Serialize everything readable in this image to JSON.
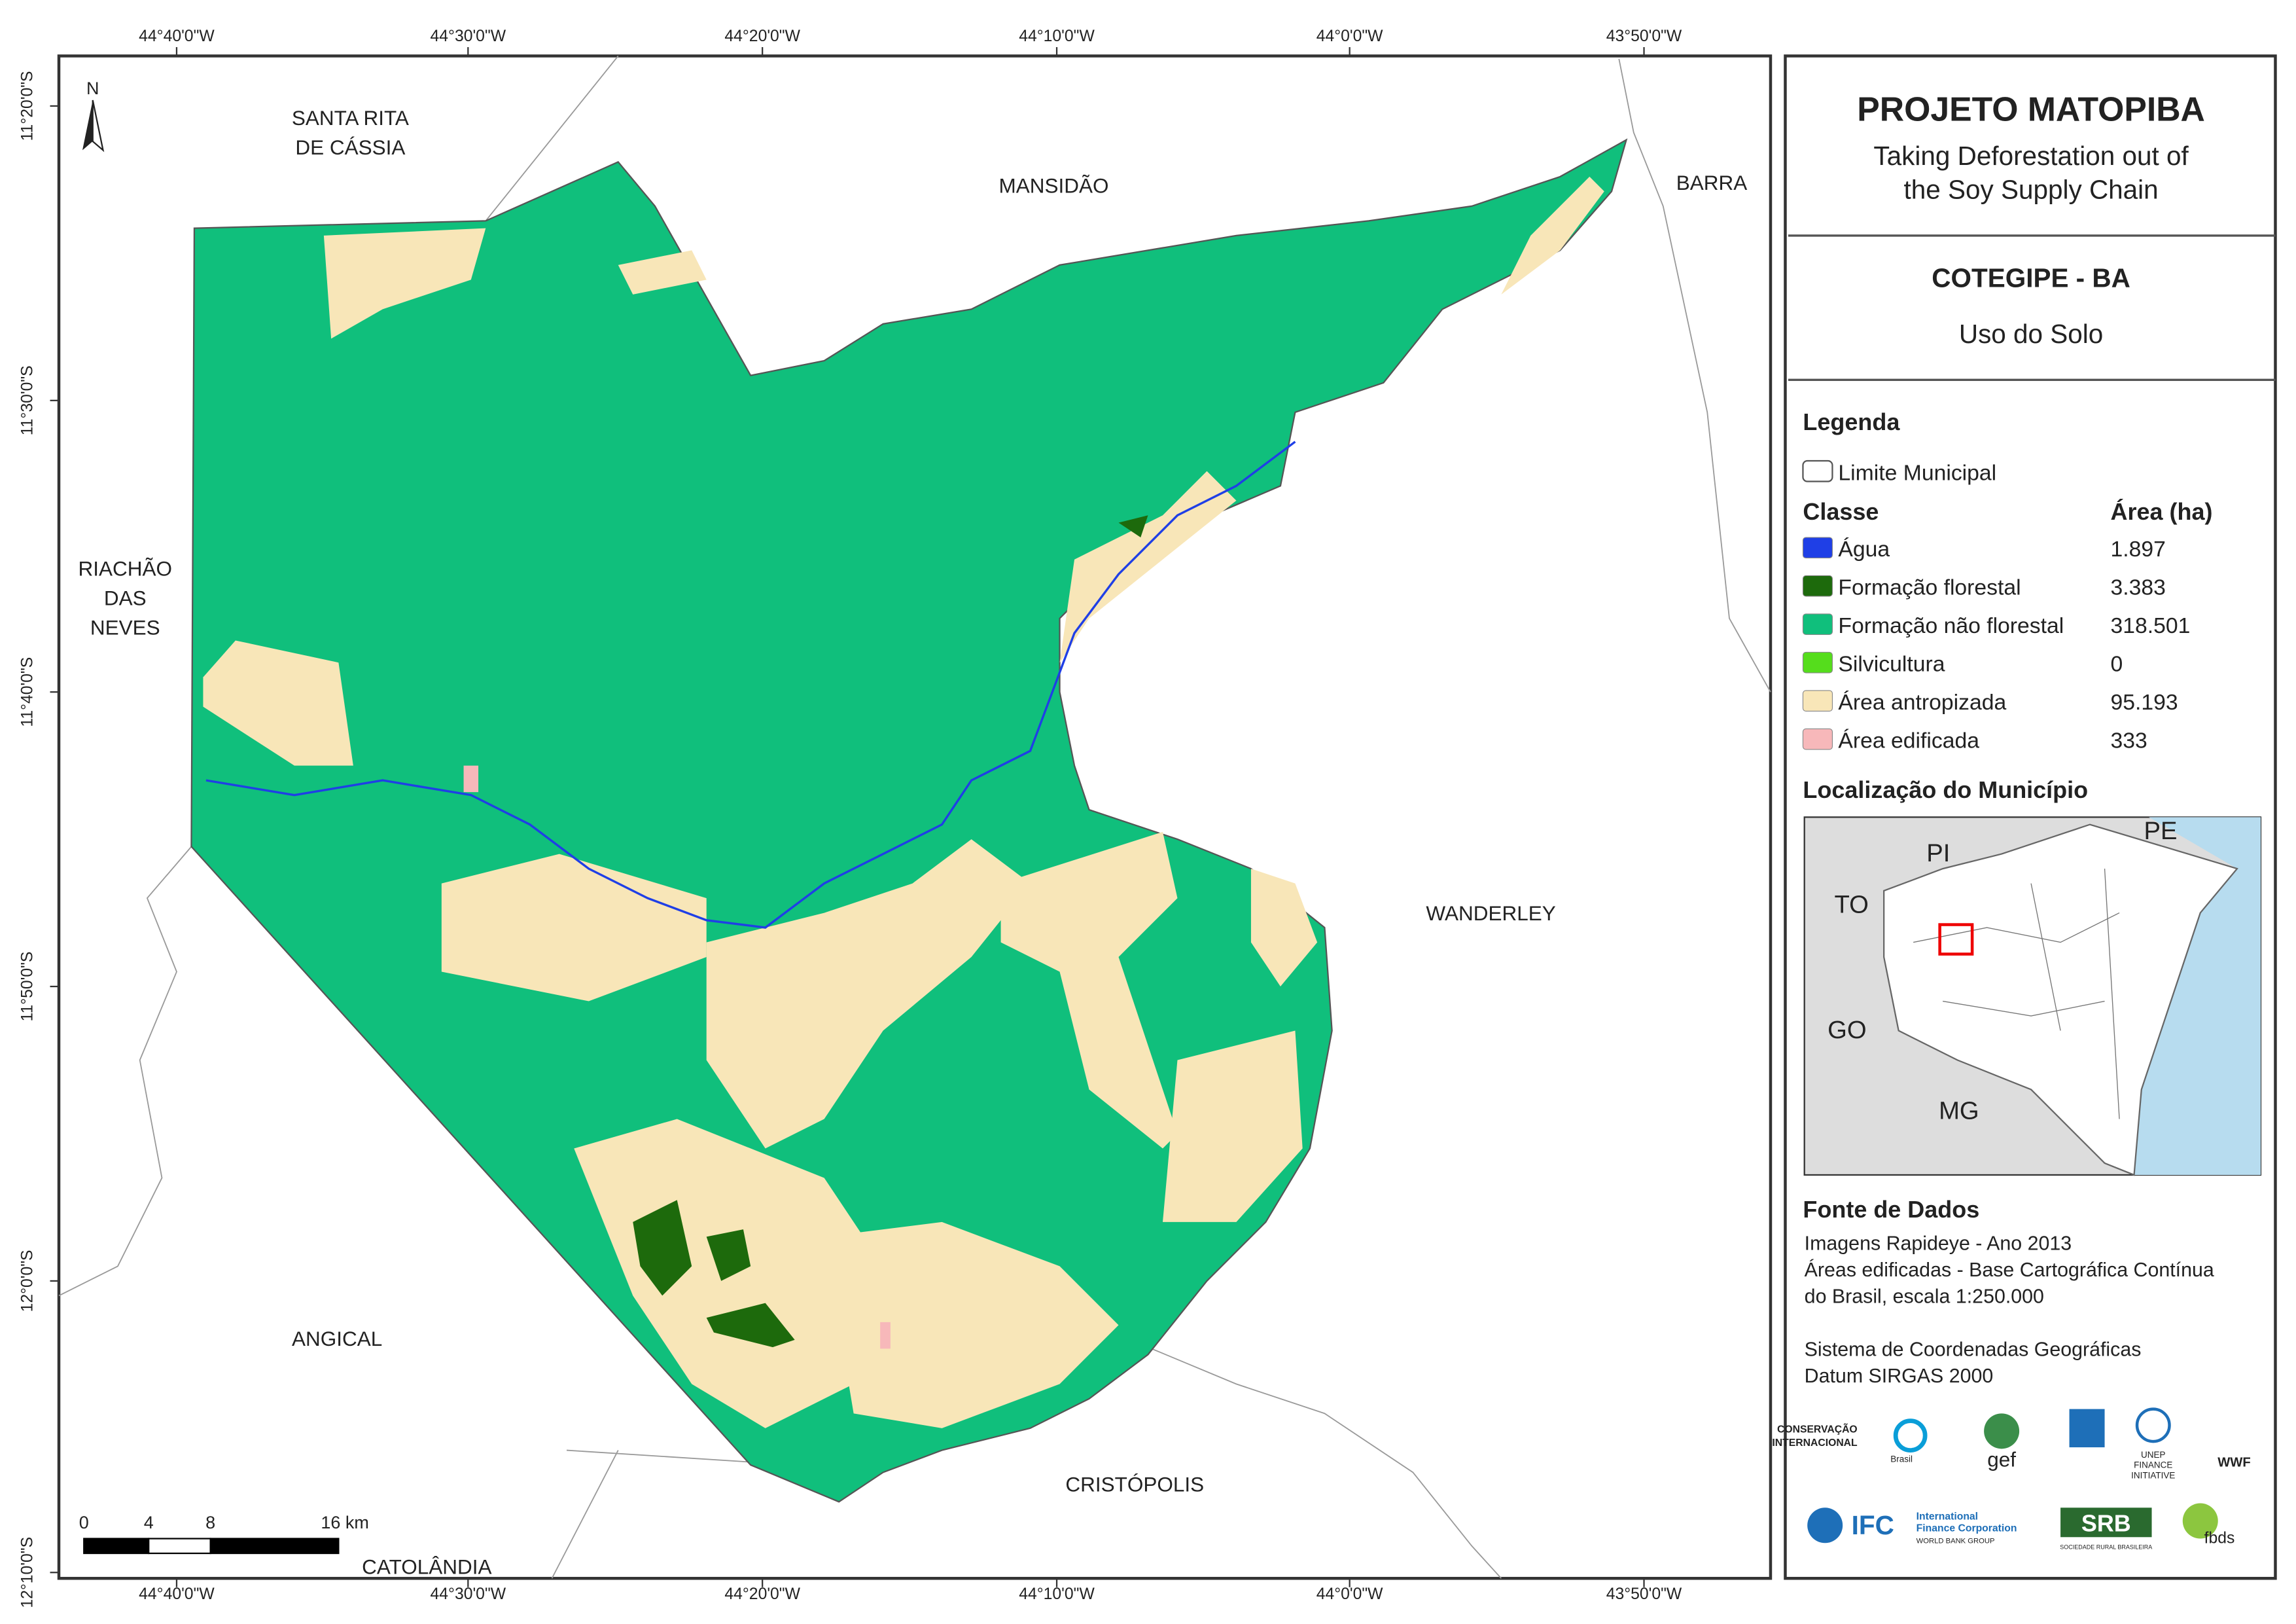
{
  "header": {
    "title": "PROJETO MATOPIBA",
    "subtitle": [
      "Taking Deforestation out of",
      "the Soy Supply Chain"
    ]
  },
  "municipality": {
    "name": "COTEGIPE - BA",
    "theme": "Uso do Solo"
  },
  "legend": {
    "title": "Legenda",
    "boundary": "Limite Municipal",
    "class_header": "Classe",
    "area_header": "Área (ha)",
    "items": [
      {
        "label": "Água",
        "area": "1.897",
        "color": "#1f3fe6"
      },
      {
        "label": "Formação florestal",
        "area": "3.383",
        "color": "#1d6a0c"
      },
      {
        "label": "Formação não florestal",
        "area": "318.501",
        "color": "#10bf7c"
      },
      {
        "label": "Silvicultura",
        "area": "0",
        "color": "#55dd1c"
      },
      {
        "label": "Área antropizada",
        "area": "95.193",
        "color": "#f8e6b8"
      },
      {
        "label": "Área edificada",
        "area": "333",
        "color": "#f7b8ba"
      }
    ]
  },
  "location": {
    "title": "Localização do Município",
    "states": [
      "PI",
      "PE",
      "TO",
      "GO",
      "MG"
    ]
  },
  "source": {
    "title": "Fonte de Dados",
    "lines": [
      "Imagens Rapideye - Ano 2013",
      "Áreas edificadas - Base Cartográfica Contínua",
      "do Brasil, escala 1:250.000",
      "",
      "Sistema de Coordenadas Geográficas",
      "Datum SIRGAS 2000"
    ]
  },
  "map": {
    "north": "N",
    "lon_labels": [
      "44°40'0\"W",
      "44°30'0\"W",
      "44°20'0\"W",
      "44°10'0\"W",
      "44°0'0\"W",
      "43°50'0\"W"
    ],
    "lat_labels": [
      "11°20'0\"S",
      "11°30'0\"S",
      "11°40'0\"S",
      "11°50'0\"S",
      "12°0'0\"S",
      "12°10'0\"S"
    ],
    "places": [
      [
        "SANTA RITA",
        "DE CÁSSIA"
      ],
      [
        "MANSIDÃO"
      ],
      [
        "BARRA"
      ],
      [
        "RIACHÃO",
        "DAS",
        "NEVES"
      ],
      [
        "WANDERLEY"
      ],
      [
        "ANGICAL"
      ],
      [
        "CRISTÓPOLIS"
      ],
      [
        "CATOLÂNDIA"
      ]
    ],
    "scale": [
      "0",
      "4",
      "8",
      "16 km"
    ]
  },
  "logos": [
    "CONSERVAÇÃO",
    "INTERNACIONAL",
    "Brasil",
    "gef",
    "UNEP",
    "FINANCE",
    "INITIATIVE",
    "WWF",
    "IFC",
    "International",
    "Finance Corporation",
    "WORLD BANK GROUP",
    "SRB",
    "SOCIEDADE RURAL BRASILEIRA",
    "fbds"
  ]
}
